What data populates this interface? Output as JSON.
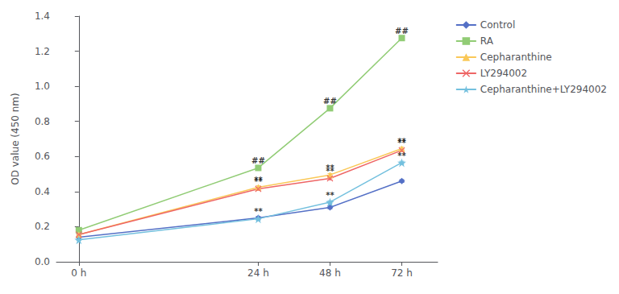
{
  "chart_data": {
    "type": "line",
    "x": [
      0,
      2.0,
      2.8,
      3.6
    ],
    "xlim": [
      -0.25,
      4.0
    ],
    "xticks": [
      {
        "value": 0,
        "label": "0 h"
      },
      {
        "value": 2.0,
        "label": "24 h"
      },
      {
        "value": 2.8,
        "label": "48 h"
      },
      {
        "value": 3.6,
        "label": "72 h"
      }
    ],
    "ylabel": "OD value (450 nm)",
    "ylim": [
      0.0,
      1.4
    ],
    "yticks": [
      {
        "value": 0.0,
        "label": "0.0"
      },
      0.2,
      0.4,
      0.6,
      0.8,
      {
        "value": 1.0,
        "label": "1.0"
      },
      1.2,
      1.4
    ],
    "grid": false,
    "legend": "upper right",
    "series": [
      {
        "name": "Control",
        "values": [
          0.14,
          0.25,
          0.31,
          0.46
        ],
        "errors": [
          0.004,
          0.008,
          0.008,
          0.008
        ],
        "marker": "diamond"
      },
      {
        "name": "RA",
        "values": [
          0.18,
          0.535,
          0.875,
          1.275
        ],
        "errors": [
          0.004,
          0.008,
          0.008,
          0.012
        ],
        "marker": "square"
      },
      {
        "name": "Cepharanthine",
        "values": [
          0.155,
          0.425,
          0.495,
          0.645
        ],
        "errors": [
          0.004,
          0.008,
          0.008,
          0.008
        ],
        "marker": "triangle"
      },
      {
        "name": "LY294002",
        "values": [
          0.155,
          0.415,
          0.475,
          0.635
        ],
        "errors": [
          0.004,
          0.008,
          0.008,
          0.008
        ],
        "marker": "x"
      },
      {
        "name": "Cepharanthine+LY294002",
        "values": [
          0.125,
          0.245,
          0.34,
          0.565
        ],
        "errors": [
          0.004,
          0.008,
          0.008,
          0.008
        ],
        "marker": "star"
      }
    ],
    "annotations": [
      {
        "text": "##",
        "x": 2.0,
        "y": 0.552
      },
      {
        "text": "##",
        "x": 2.8,
        "y": 0.892
      },
      {
        "text": "##",
        "x": 3.6,
        "y": 1.292
      },
      {
        "text": "**",
        "x": 2.0,
        "y": 0.442
      },
      {
        "text": "**",
        "x": 2.8,
        "y": 0.512
      },
      {
        "text": "**",
        "x": 3.6,
        "y": 0.662
      },
      {
        "text": "**",
        "x": 2.0,
        "y": 0.432
      },
      {
        "text": "**",
        "x": 2.8,
        "y": 0.492
      },
      {
        "text": "**",
        "x": 3.6,
        "y": 0.652
      },
      {
        "text": "**",
        "x": 2.0,
        "y": 0.262
      },
      {
        "text": "**",
        "x": 2.8,
        "y": 0.357
      },
      {
        "text": "**",
        "x": 3.6,
        "y": 0.582
      }
    ]
  }
}
